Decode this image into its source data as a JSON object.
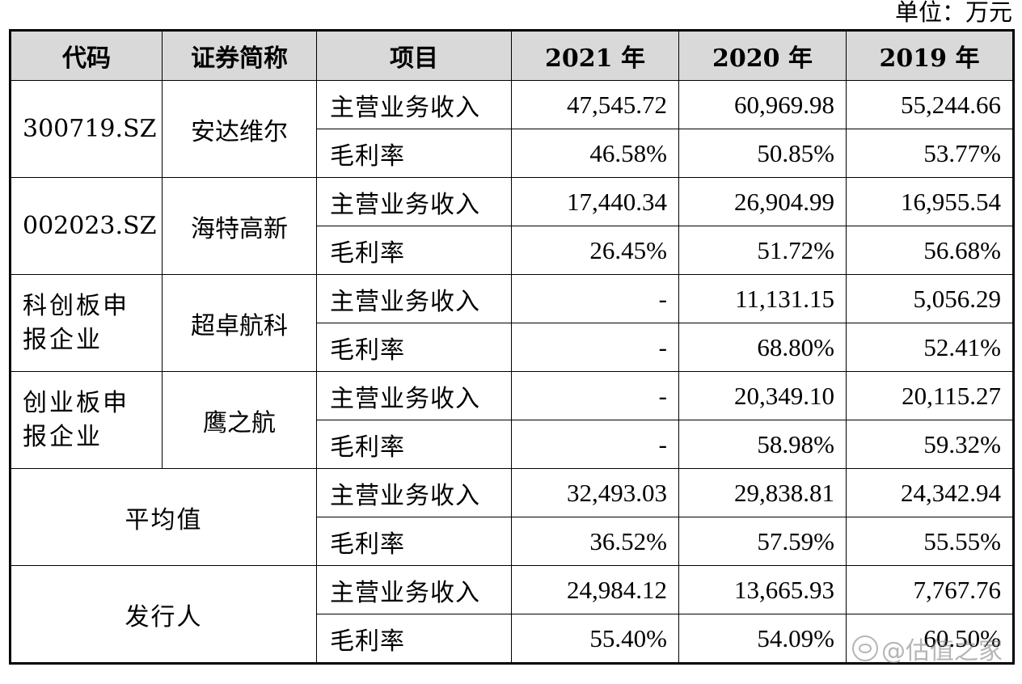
{
  "unit_label": "单位：万元",
  "headers": [
    "代码",
    "证券简称",
    "项目",
    "2021 年",
    "2020 年",
    "2019 年"
  ],
  "groups": [
    {
      "code": "300719.SZ",
      "name": "安达维尔",
      "rows": [
        {
          "item": "主营业务收入",
          "v2021": "47,545.72",
          "v2020": "60,969.98",
          "v2019": "55,244.66"
        },
        {
          "item": "毛利率",
          "v2021": "46.58%",
          "v2020": "50.85%",
          "v2019": "53.77%"
        }
      ]
    },
    {
      "code": "002023.SZ",
      "name": "海特高新",
      "rows": [
        {
          "item": "主营业务收入",
          "v2021": "17,440.34",
          "v2020": "26,904.99",
          "v2019": "16,955.54"
        },
        {
          "item": "毛利率",
          "v2021": "26.45%",
          "v2020": "51.72%",
          "v2019": "56.68%"
        }
      ]
    },
    {
      "code": "科创板申报企业",
      "name": "超卓航科",
      "rows": [
        {
          "item": "主营业务收入",
          "v2021": "-",
          "v2020": "11,131.15",
          "v2019": "5,056.29"
        },
        {
          "item": "毛利率",
          "v2021": "-",
          "v2020": "68.80%",
          "v2019": "52.41%"
        }
      ]
    },
    {
      "code": "创业板申报企业",
      "name": "鹰之航",
      "rows": [
        {
          "item": "主营业务收入",
          "v2021": "-",
          "v2020": "20,349.10",
          "v2019": "20,115.27"
        },
        {
          "item": "毛利率",
          "v2021": "-",
          "v2020": "58.98%",
          "v2019": "59.32%"
        }
      ]
    },
    {
      "label": "平均值",
      "rows": [
        {
          "item": "主营业务收入",
          "v2021": "32,493.03",
          "v2020": "29,838.81",
          "v2019": "24,342.94"
        },
        {
          "item": "毛利率",
          "v2021": "36.52%",
          "v2020": "57.59%",
          "v2019": "55.55%"
        }
      ]
    },
    {
      "label": "发行人",
      "rows": [
        {
          "item": "主营业务收入",
          "v2021": "24,984.12",
          "v2020": "13,665.93",
          "v2019": "7,767.76"
        },
        {
          "item": "毛利率",
          "v2021": "55.40%",
          "v2020": "54.09%",
          "v2019": "60.50%"
        }
      ]
    }
  ],
  "watermark": "@估值之家"
}
